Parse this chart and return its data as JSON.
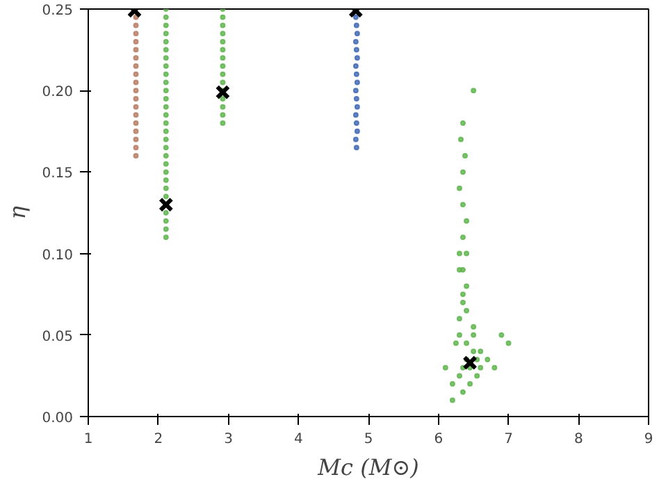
{
  "chart_data": {
    "type": "scatter",
    "xlabel": "Mc (M⊙)",
    "ylabel": "η",
    "xlim": [
      1,
      9
    ],
    "ylim": [
      0,
      0.25
    ],
    "xticks": [
      1,
      2,
      3,
      4,
      5,
      6,
      7,
      8,
      9
    ],
    "yticks": [
      {
        "value": 0,
        "label": "0.00"
      },
      {
        "value": 0.05,
        "label": "0.05"
      },
      {
        "value": 0.1,
        "label": "0.10"
      },
      {
        "value": 0.15,
        "label": "0.15"
      },
      {
        "value": 0.2,
        "label": "0.20"
      },
      {
        "value": 0.25,
        "label": "0.25"
      }
    ],
    "grid": false,
    "marker": "circle",
    "series": [
      {
        "color": "#b87a62",
        "x": [
          1.68,
          1.68,
          1.68,
          1.68,
          1.68,
          1.68,
          1.68,
          1.68,
          1.68,
          1.68,
          1.68,
          1.68,
          1.68,
          1.68,
          1.68,
          1.68,
          1.68,
          1.68
        ],
        "values": [
          0.16,
          0.165,
          0.17,
          0.175,
          0.18,
          0.185,
          0.19,
          0.195,
          0.2,
          0.205,
          0.21,
          0.215,
          0.22,
          0.225,
          0.23,
          0.235,
          0.24,
          0.245
        ]
      },
      {
        "color": "#5db44b",
        "x": [
          2.11,
          2.11,
          2.11,
          2.11,
          2.11,
          2.11,
          2.11,
          2.11,
          2.11,
          2.11,
          2.11,
          2.11,
          2.11,
          2.11,
          2.11,
          2.11,
          2.11,
          2.11,
          2.11,
          2.11,
          2.11,
          2.11,
          2.11,
          2.11,
          2.11,
          2.11,
          2.11,
          2.11,
          2.92,
          2.92,
          2.92,
          2.92,
          2.92,
          2.92,
          2.92,
          2.92,
          2.92,
          2.92,
          2.92,
          2.92,
          2.92,
          2.92,
          2.92,
          6.3,
          6.35,
          6.4,
          6.45,
          6.5,
          6.55,
          6.6,
          6.2,
          6.25,
          6.3,
          6.4,
          6.5,
          6.6,
          6.7,
          6.8,
          6.35,
          6.45,
          6.55,
          6.3,
          6.4,
          6.5,
          6.35,
          6.4,
          6.35,
          6.3,
          6.35,
          6.4,
          6.35,
          6.3,
          6.35,
          6.38,
          6.32,
          6.35,
          6.3,
          6.4,
          6.35,
          6.9,
          7.0,
          6.1,
          6.2,
          6.5
        ],
        "values": [
          0.11,
          0.115,
          0.12,
          0.125,
          0.135,
          0.14,
          0.145,
          0.15,
          0.155,
          0.16,
          0.165,
          0.17,
          0.175,
          0.18,
          0.185,
          0.19,
          0.195,
          0.2,
          0.205,
          0.21,
          0.215,
          0.22,
          0.225,
          0.23,
          0.235,
          0.24,
          0.245,
          0.25,
          0.18,
          0.185,
          0.19,
          0.195,
          0.2,
          0.205,
          0.21,
          0.215,
          0.22,
          0.225,
          0.23,
          0.235,
          0.24,
          0.245,
          0.25,
          0.025,
          0.03,
          0.035,
          0.03,
          0.04,
          0.035,
          0.03,
          0.02,
          0.045,
          0.05,
          0.045,
          0.05,
          0.04,
          0.035,
          0.03,
          0.015,
          0.02,
          0.025,
          0.06,
          0.065,
          0.055,
          0.075,
          0.08,
          0.09,
          0.1,
          0.11,
          0.12,
          0.13,
          0.14,
          0.15,
          0.16,
          0.17,
          0.18,
          0.09,
          0.1,
          0.07,
          0.05,
          0.045,
          0.03,
          0.01,
          0.2
        ]
      },
      {
        "color": "#3d66b4",
        "x": [
          4.83,
          4.82,
          4.84,
          4.83,
          4.82,
          4.84,
          4.83,
          4.82,
          4.84,
          4.83,
          4.82,
          4.84,
          4.83,
          4.82,
          4.84,
          4.83,
          4.82
        ],
        "values": [
          0.165,
          0.17,
          0.175,
          0.18,
          0.185,
          0.19,
          0.195,
          0.2,
          0.205,
          0.21,
          0.215,
          0.22,
          0.225,
          0.23,
          0.235,
          0.24,
          0.245
        ]
      },
      {
        "color": "#000000",
        "marker": "cross",
        "x": [
          1.66,
          2.11,
          2.92,
          4.82,
          6.45
        ],
        "values": [
          0.249,
          0.13,
          0.199,
          0.249,
          0.033
        ]
      }
    ]
  }
}
